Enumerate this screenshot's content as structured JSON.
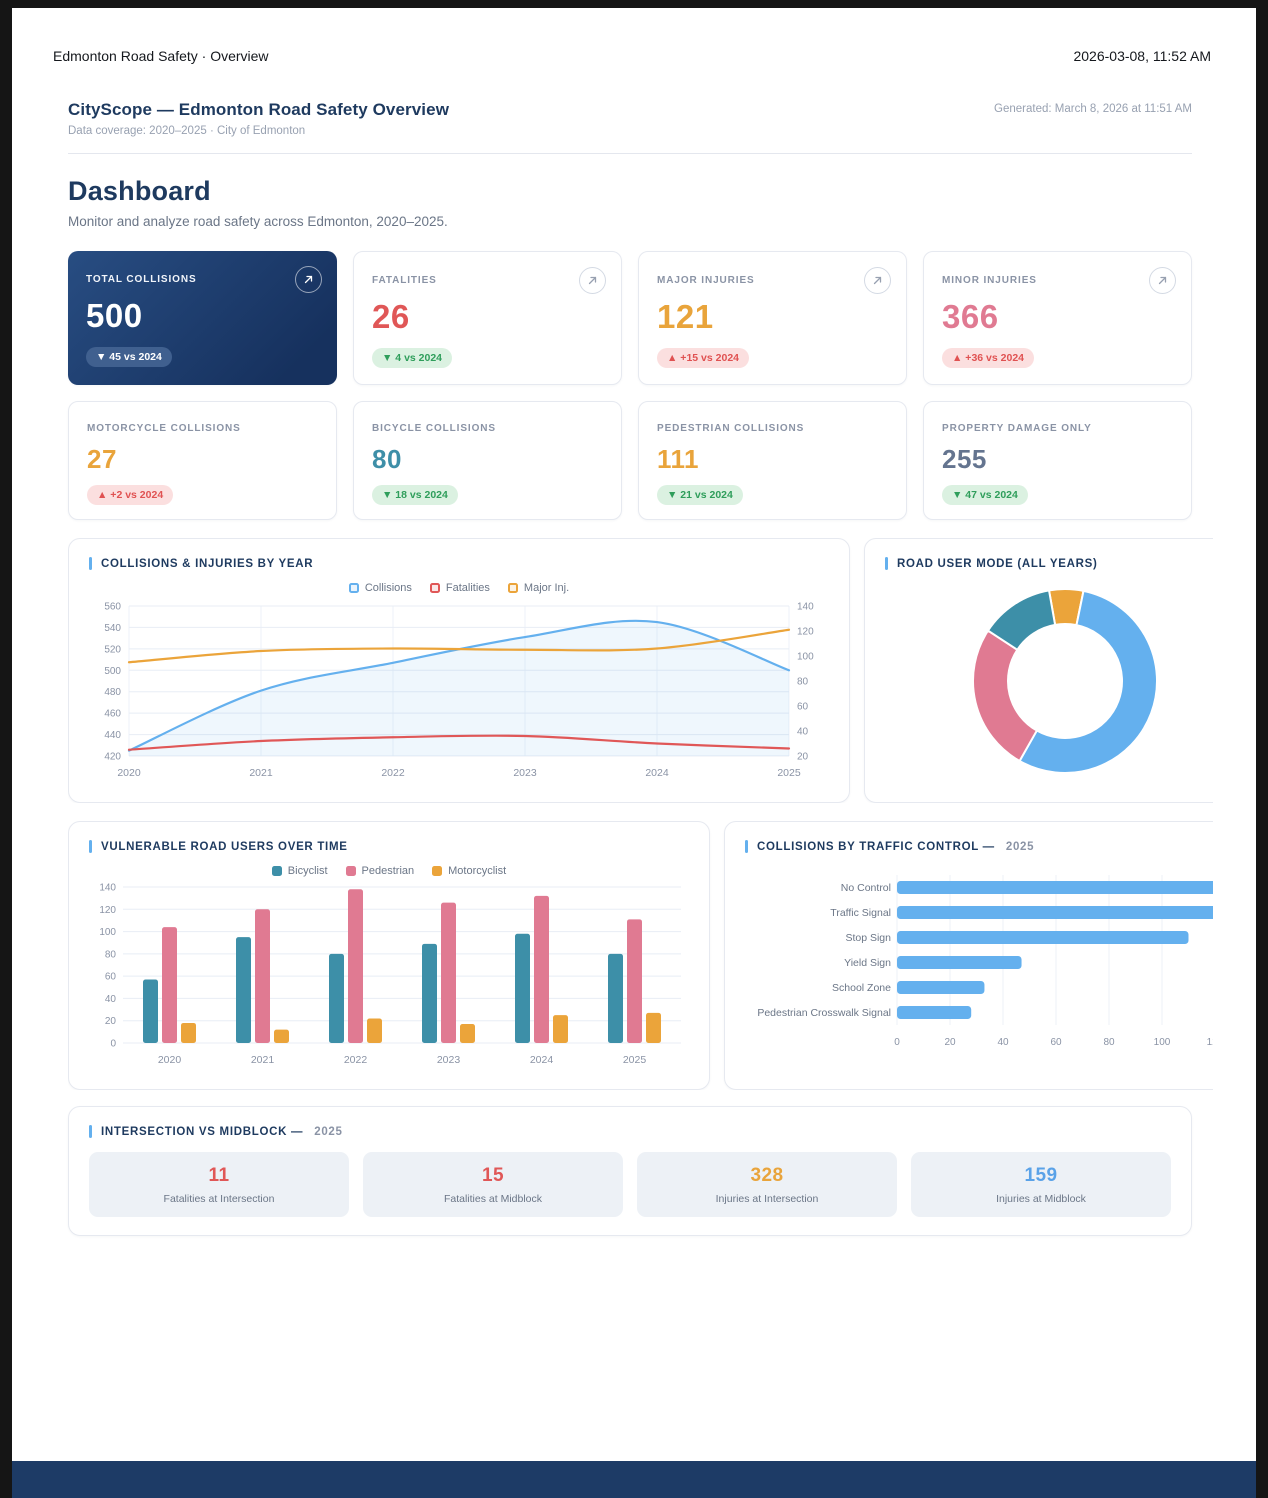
{
  "window": {
    "title": "Edmonton Road Safety · Overview",
    "datetime": "2026-03-08, 11:52 AM"
  },
  "report": {
    "title": "CityScope — Edmonton Road Safety Overview",
    "coverage": "Data coverage: 2020–2025  ·  City of Edmonton",
    "generated": "Generated: March 8, 2026 at 11:51 AM",
    "heading": "Dashboard",
    "subheading": "Monitor and analyze road safety across Edmonton, 2020–2025."
  },
  "kpis": [
    {
      "label": "TOTAL COLLISIONS",
      "value": "500",
      "delta": "▼ 45 vs 2024"
    },
    {
      "label": "FATALITIES",
      "value": "26",
      "delta": "▼ 4 vs 2024"
    },
    {
      "label": "MAJOR INJURIES",
      "value": "121",
      "delta": "▲ +15 vs 2024"
    },
    {
      "label": "MINOR INJURIES",
      "value": "366",
      "delta": "▲ +36 vs 2024"
    },
    {
      "label": "MOTORCYCLE COLLISIONS",
      "value": "27",
      "delta": "▲ +2 vs 2024"
    },
    {
      "label": "BICYCLE COLLISIONS",
      "value": "80",
      "delta": "▼ 18 vs 2024"
    },
    {
      "label": "PEDESTRIAN COLLISIONS",
      "value": "111",
      "delta": "▼ 21 vs 2024"
    },
    {
      "label": "PROPERTY DAMAGE ONLY",
      "value": "255",
      "delta": "▼ 47 vs 2024"
    }
  ],
  "sections": {
    "line": {
      "title": "COLLISIONS & INJURIES BY YEAR"
    },
    "donut": {
      "title": "ROAD USER MODE (ALL YEARS)"
    },
    "vru": {
      "title": "VULNERABLE ROAD USERS OVER TIME"
    },
    "traffic": {
      "title": "COLLISIONS BY TRAFFIC CONTROL —",
      "suffix": "2025"
    },
    "intersection": {
      "title": "INTERSECTION VS MIDBLOCK —",
      "suffix": "2025"
    }
  },
  "intersection_stats": [
    {
      "value": "11",
      "label": "Fatalities at Intersection"
    },
    {
      "value": "15",
      "label": "Fatalities at Midblock"
    },
    {
      "value": "328",
      "label": "Injuries at Intersection"
    },
    {
      "value": "159",
      "label": "Injuries at Midblock"
    }
  ],
  "chart_data": [
    {
      "id": "collisions_by_year",
      "type": "line",
      "title": "COLLISIONS & INJURIES BY YEAR",
      "x": [
        2020,
        2021,
        2022,
        2023,
        2024,
        2025
      ],
      "left_axis": {
        "min": 420,
        "max": 560,
        "step": 20
      },
      "right_axis": {
        "min": 20,
        "max": 140,
        "step": 20
      },
      "grid": true,
      "legend_position": "top",
      "series": [
        {
          "name": "Collisions",
          "axis": "left",
          "color": "#64b0ee",
          "area": true,
          "values": [
            425,
            481,
            507,
            531,
            545,
            500
          ]
        },
        {
          "name": "Fatalities",
          "axis": "right",
          "color": "#e05757",
          "values": [
            25,
            32,
            35,
            36,
            30,
            26
          ]
        },
        {
          "name": "Major Inj.",
          "axis": "right",
          "color": "#eba43a",
          "values": [
            95,
            104,
            106,
            105,
            106,
            121
          ]
        }
      ]
    },
    {
      "id": "road_user_mode",
      "type": "pie",
      "title": "ROAD USER MODE (ALL YEARS)",
      "donut": true,
      "start_angle_deg": -10,
      "segments": [
        {
          "color": "#eba43a",
          "pct": 6
        },
        {
          "color": "#64b0ee",
          "pct": 55
        },
        {
          "color": "#e07a92",
          "pct": 26
        },
        {
          "color": "#3d8fa8",
          "pct": 13
        }
      ]
    },
    {
      "id": "vulnerable_road_users",
      "type": "bar",
      "title": "VULNERABLE ROAD USERS OVER TIME",
      "categories": [
        "2020",
        "2021",
        "2022",
        "2023",
        "2024",
        "2025"
      ],
      "ylim": [
        0,
        140
      ],
      "ystep": 20,
      "legend_position": "top",
      "series": [
        {
          "name": "Bicyclist",
          "color": "#3d8fa8",
          "values": [
            57,
            95,
            80,
            89,
            98,
            80
          ]
        },
        {
          "name": "Pedestrian",
          "color": "#e07a92",
          "values": [
            104,
            120,
            138,
            126,
            132,
            111
          ]
        },
        {
          "name": "Motorcyclist",
          "color": "#eba43a",
          "values": [
            18,
            12,
            22,
            17,
            25,
            27
          ]
        }
      ]
    },
    {
      "id": "traffic_control",
      "type": "bar",
      "orientation": "horizontal",
      "title": "COLLISIONS BY TRAFFIC CONTROL — 2025",
      "categories": [
        "No Control",
        "Traffic Signal",
        "Stop Sign",
        "Yield Sign",
        "School Zone",
        "Pedestrian Crosswalk Signal"
      ],
      "values": [
        132,
        128,
        110,
        47,
        33,
        28
      ],
      "xlim": [
        0,
        120
      ],
      "xstep": 20,
      "color": "#64b0ee"
    }
  ],
  "colors": {
    "navy": "#1e3a5f",
    "navy_card": "#16315e",
    "blue": "#64b0ee",
    "red": "#e05757",
    "orange": "#e9a43b",
    "pink": "#e07a92",
    "teal": "#3d8fa8",
    "slate": "#64748f",
    "badge_green_bg": "#dbf1e1",
    "badge_green_text": "#2f9e5b",
    "badge_red_bg": "#fbdfdf",
    "badge_red_text": "#e05252",
    "footer": "#1d3b66"
  }
}
